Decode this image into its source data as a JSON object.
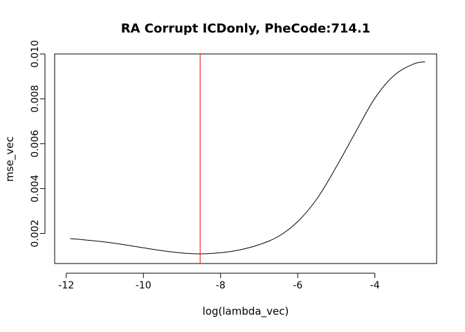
{
  "chart_data": {
    "type": "line",
    "title": "RA  Corrupt ICDonly,  PheCode:714.1",
    "xlabel": "log(lambda_vec)",
    "ylabel": "mse_vec",
    "xlim": [
      -12.3,
      -2.4
    ],
    "ylim": [
      0.00066,
      0.01
    ],
    "xticks": [
      -12,
      -10,
      -8,
      -6,
      -4
    ],
    "yticks": [
      0.002,
      0.004,
      0.006,
      0.008,
      0.01
    ],
    "xtick_labels": [
      "-12",
      "-10",
      "-8",
      "-6",
      "-4"
    ],
    "ytick_labels": [
      "0.002",
      "0.004",
      "0.006",
      "0.008",
      "0.010"
    ],
    "grid": false,
    "series": [
      {
        "color": "#000000",
        "x": [
          -11.9,
          -11.5,
          -11.0,
          -10.5,
          -10.0,
          -9.5,
          -9.0,
          -8.5,
          -8.0,
          -7.5,
          -7.0,
          -6.5,
          -6.0,
          -5.5,
          -5.0,
          -4.5,
          -4.0,
          -3.5,
          -3.0,
          -2.7
        ],
        "y": [
          0.00177,
          0.00171,
          0.00162,
          0.0015,
          0.00136,
          0.00123,
          0.00113,
          0.00109,
          0.00114,
          0.00127,
          0.0015,
          0.00187,
          0.00253,
          0.00355,
          0.00497,
          0.00652,
          0.00803,
          0.00905,
          0.00955,
          0.00965
        ]
      }
    ],
    "vline": {
      "x": -8.53,
      "color": "#ff0000"
    }
  }
}
